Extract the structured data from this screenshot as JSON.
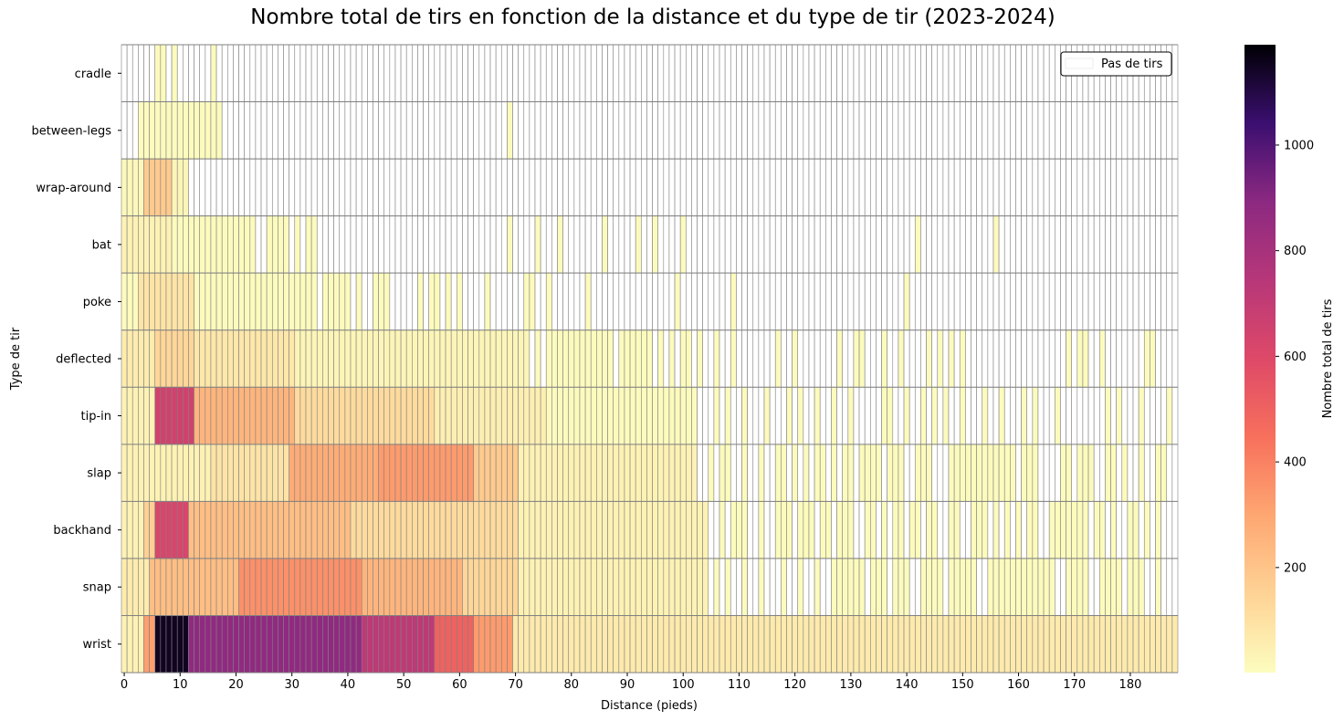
{
  "chart_data": {
    "type": "heatmap",
    "title": "Nombre total de tirs en fonction de la distance et du type de tir (2023-2024)",
    "xlabel": "Distance (pieds)",
    "ylabel": "Type de tir",
    "colorbar_label": "Nombre total de tirs",
    "colormap": "magma_r",
    "color_range": [
      1,
      1190
    ],
    "colorbar_ticks": [
      "200",
      "400",
      "600",
      "800",
      "1000"
    ],
    "legend": {
      "label": "Pas de tirs",
      "color": "#ffffff",
      "position": "top-right"
    },
    "x_tick_labels": [
      "0",
      "10",
      "20",
      "30",
      "40",
      "50",
      "60",
      "70",
      "80",
      "90",
      "100",
      "110",
      "120",
      "130",
      "140",
      "150",
      "160",
      "170",
      "180"
    ],
    "distance_range": [
      0,
      189
    ],
    "grid_color": "#808080",
    "shot_types": [
      "cradle",
      "between-legs",
      "wrap-around",
      "bat",
      "poke",
      "deflected",
      "tip-in",
      "slap",
      "backhand",
      "snap",
      "wrist"
    ],
    "rows": {
      "cradle": {
        "present": [
          [
            6,
            7
          ],
          [
            9,
            9
          ],
          [
            16,
            16
          ]
        ],
        "peaks": []
      },
      "between-legs": {
        "present": [
          [
            3,
            17
          ],
          [
            69,
            69
          ]
        ],
        "peaks": []
      },
      "wrap-around": {
        "present": [
          [
            0,
            11
          ]
        ],
        "peaks": [
          [
            0,
            3,
            20
          ],
          [
            4,
            8,
            180
          ],
          [
            9,
            11,
            30
          ]
        ]
      },
      "bat": {
        "present": [
          [
            0,
            17
          ],
          [
            18,
            23
          ],
          [
            26,
            29
          ],
          [
            31,
            31
          ],
          [
            33,
            34
          ],
          [
            69,
            69
          ],
          [
            74,
            74
          ],
          [
            78,
            78
          ],
          [
            86,
            86
          ],
          [
            92,
            92
          ],
          [
            95,
            95
          ],
          [
            100,
            100
          ],
          [
            142,
            142
          ],
          [
            156,
            156
          ]
        ],
        "peaks": [
          [
            0,
            8,
            40
          ]
        ]
      },
      "poke": {
        "present": [
          [
            0,
            34
          ],
          [
            36,
            40
          ],
          [
            42,
            42
          ],
          [
            45,
            47
          ],
          [
            53,
            53
          ],
          [
            55,
            56
          ],
          [
            58,
            58
          ],
          [
            60,
            60
          ],
          [
            65,
            65
          ],
          [
            72,
            73
          ],
          [
            76,
            76
          ],
          [
            83,
            83
          ],
          [
            99,
            99
          ],
          [
            109,
            109
          ],
          [
            140,
            140
          ]
        ],
        "peaks": [
          [
            3,
            12,
            90
          ]
        ]
      },
      "deflected": {
        "present": [
          [
            0,
            72
          ],
          [
            74,
            74
          ],
          [
            76,
            87
          ],
          [
            89,
            94
          ],
          [
            96,
            96
          ],
          [
            98,
            98
          ],
          [
            100,
            101
          ],
          [
            103,
            103
          ],
          [
            106,
            106
          ],
          [
            109,
            109
          ],
          [
            117,
            117
          ],
          [
            120,
            120
          ],
          [
            128,
            128
          ],
          [
            131,
            132
          ],
          [
            136,
            136
          ],
          [
            139,
            139
          ],
          [
            144,
            144
          ],
          [
            146,
            146
          ],
          [
            148,
            148
          ],
          [
            150,
            150
          ],
          [
            169,
            169
          ],
          [
            171,
            172
          ],
          [
            175,
            175
          ],
          [
            183,
            184
          ]
        ],
        "peaks": [
          [
            0,
            5,
            60
          ],
          [
            6,
            12,
            140
          ],
          [
            13,
            30,
            80
          ],
          [
            31,
            72,
            30
          ]
        ]
      },
      "tip-in": {
        "present": [
          [
            0,
            102
          ],
          [
            106,
            106
          ],
          [
            108,
            108
          ],
          [
            111,
            111
          ],
          [
            115,
            115
          ],
          [
            119,
            119
          ],
          [
            121,
            121
          ],
          [
            124,
            124
          ],
          [
            127,
            127
          ],
          [
            130,
            130
          ],
          [
            136,
            137
          ],
          [
            140,
            140
          ],
          [
            143,
            143
          ],
          [
            145,
            145
          ],
          [
            147,
            147
          ],
          [
            150,
            150
          ],
          [
            154,
            154
          ],
          [
            157,
            157
          ],
          [
            161,
            161
          ],
          [
            163,
            163
          ],
          [
            167,
            167
          ],
          [
            176,
            176
          ],
          [
            178,
            178
          ],
          [
            182,
            182
          ],
          [
            187,
            187
          ]
        ],
        "peaks": [
          [
            0,
            5,
            40
          ],
          [
            6,
            12,
            650
          ],
          [
            13,
            30,
            250
          ],
          [
            31,
            55,
            120
          ],
          [
            56,
            75,
            50
          ]
        ]
      },
      "slap": {
        "present": [
          [
            0,
            102
          ],
          [
            105,
            105
          ],
          [
            107,
            108
          ],
          [
            111,
            111
          ],
          [
            114,
            114
          ],
          [
            117,
            118
          ],
          [
            120,
            120
          ],
          [
            122,
            122
          ],
          [
            124,
            125
          ],
          [
            127,
            127
          ],
          [
            129,
            130
          ],
          [
            132,
            135
          ],
          [
            137,
            139
          ],
          [
            142,
            144
          ],
          [
            148,
            159
          ],
          [
            161,
            163
          ],
          [
            168,
            169
          ],
          [
            171,
            173
          ],
          [
            176,
            177
          ],
          [
            179,
            179
          ],
          [
            182,
            182
          ],
          [
            185,
            186
          ]
        ],
        "peaks": [
          [
            0,
            15,
            40
          ],
          [
            16,
            29,
            90
          ],
          [
            30,
            45,
            280
          ],
          [
            46,
            62,
            330
          ],
          [
            63,
            70,
            180
          ],
          [
            71,
            102,
            40
          ]
        ]
      },
      "backhand": {
        "present": [
          [
            0,
            104
          ],
          [
            107,
            107
          ],
          [
            109,
            111
          ],
          [
            114,
            114
          ],
          [
            117,
            119
          ],
          [
            121,
            123
          ],
          [
            125,
            126
          ],
          [
            128,
            130
          ],
          [
            133,
            134
          ],
          [
            136,
            136
          ],
          [
            138,
            139
          ],
          [
            141,
            142
          ],
          [
            144,
            145
          ],
          [
            148,
            149
          ],
          [
            152,
            154
          ],
          [
            156,
            156
          ],
          [
            158,
            158
          ],
          [
            160,
            160
          ],
          [
            162,
            163
          ],
          [
            166,
            172
          ],
          [
            174,
            175
          ],
          [
            177,
            177
          ],
          [
            180,
            181
          ],
          [
            183,
            183
          ],
          [
            185,
            185
          ]
        ],
        "peaks": [
          [
            0,
            3,
            40
          ],
          [
            4,
            5,
            160
          ],
          [
            6,
            11,
            620
          ],
          [
            12,
            40,
            220
          ],
          [
            41,
            70,
            120
          ],
          [
            71,
            104,
            40
          ]
        ]
      },
      "snap": {
        "present": [
          [
            0,
            104
          ],
          [
            106,
            106
          ],
          [
            108,
            108
          ],
          [
            111,
            111
          ],
          [
            114,
            114
          ],
          [
            118,
            118
          ],
          [
            121,
            121
          ],
          [
            124,
            124
          ],
          [
            127,
            132
          ],
          [
            134,
            136
          ],
          [
            138,
            140
          ],
          [
            143,
            146
          ],
          [
            148,
            152
          ],
          [
            155,
            166
          ],
          [
            169,
            172
          ],
          [
            175,
            178
          ],
          [
            180,
            182
          ],
          [
            185,
            185
          ]
        ],
        "peaks": [
          [
            0,
            4,
            60
          ],
          [
            5,
            20,
            220
          ],
          [
            21,
            42,
            360
          ],
          [
            43,
            60,
            250
          ],
          [
            61,
            70,
            140
          ],
          [
            71,
            104,
            40
          ]
        ]
      },
      "wrist": {
        "present": [
          [
            0,
            189
          ]
        ],
        "peaks": [
          [
            0,
            3,
            40
          ],
          [
            4,
            5,
            320
          ],
          [
            6,
            11,
            1150
          ],
          [
            12,
            42,
            880
          ],
          [
            43,
            55,
            720
          ],
          [
            56,
            62,
            500
          ],
          [
            63,
            69,
            330
          ],
          [
            70,
            189,
            70
          ]
        ]
      }
    }
  }
}
